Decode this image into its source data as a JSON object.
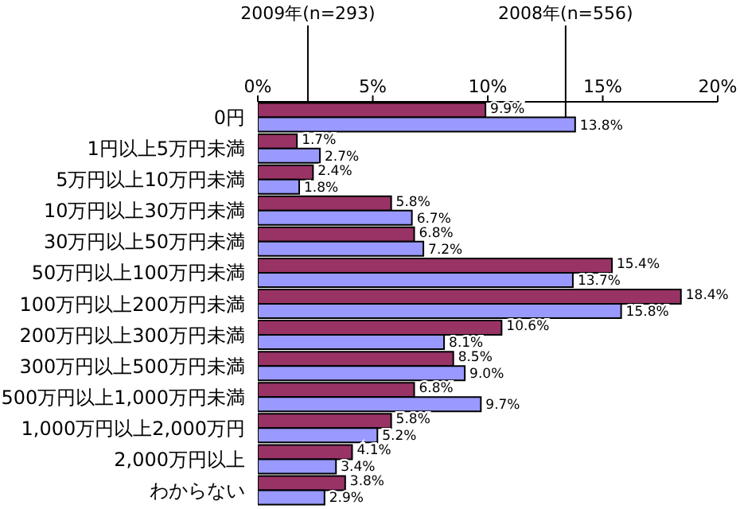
{
  "chart_data": {
    "type": "bar",
    "orientation": "horizontal",
    "categories": [
      "0円",
      "1円以上5万円未満",
      "5万円以上10万円未満",
      "10万円以上30万円未満",
      "30万円以上50万円未満",
      "50万円以上100万円未満",
      "100万円以上200万円未満",
      "200万円以上300万円未満",
      "300万円以上500万円未満",
      "500万円以上1,000万円未満",
      "1,000万円以上2,000万円",
      "2,000万円以上",
      "わからない"
    ],
    "series": [
      {
        "name": "2009年(n=293)",
        "color": "#993366",
        "values": [
          9.9,
          1.7,
          2.4,
          5.8,
          6.8,
          15.4,
          18.4,
          10.6,
          8.5,
          6.8,
          5.8,
          4.1,
          3.8
        ],
        "value_labels": [
          "9.9%",
          "1.7%",
          "2.4%",
          "5.8%",
          "6.8%",
          "15.4%",
          "18.4%",
          "10.6%",
          "8.5%",
          "6.8%",
          "5.8%",
          "4.1%",
          "3.8%"
        ]
      },
      {
        "name": "2008年(n=556)",
        "color": "#9999ff",
        "values": [
          13.8,
          2.7,
          1.8,
          6.7,
          7.2,
          13.7,
          15.8,
          8.1,
          9.0,
          9.7,
          5.2,
          3.4,
          2.9
        ],
        "value_labels": [
          "13.8%",
          "2.7%",
          "1.8%",
          "6.7%",
          "7.2%",
          "13.7%",
          "15.8%",
          "8.1%",
          "9.0%",
          "9.7%",
          "5.2%",
          "3.4%",
          "2.9%"
        ]
      }
    ],
    "xlim": [
      0,
      20
    ],
    "xticks": [
      {
        "value": 0,
        "label": "0%"
      },
      {
        "value": 5,
        "label": "5%"
      },
      {
        "value": 10,
        "label": "10%"
      },
      {
        "value": 15,
        "label": "15%"
      },
      {
        "value": 20,
        "label": "20%"
      }
    ],
    "grid": false,
    "legend": "top"
  }
}
